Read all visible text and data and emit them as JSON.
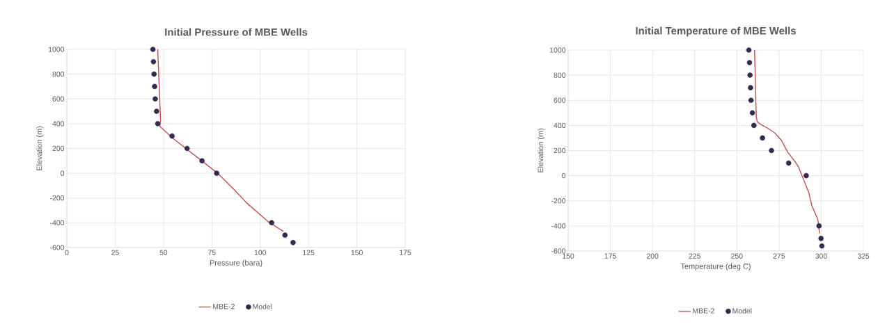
{
  "chart_data": [
    {
      "type": "line",
      "title": "Initial Pressure of MBE Wells",
      "xlabel": "Pressure (bara)",
      "ylabel": "Elevation (m)",
      "xlim": [
        0,
        175
      ],
      "ylim": [
        -600,
        1000
      ],
      "xticks": [
        0,
        25,
        50,
        75,
        100,
        125,
        150,
        175
      ],
      "yticks": [
        -600,
        -400,
        -200,
        0,
        200,
        400,
        600,
        800,
        1000
      ],
      "grid": true,
      "legend": "bottom",
      "series": [
        {
          "name": "MBE-2",
          "color": "#c0504d",
          "line_style": "solid",
          "marker": "none",
          "x": [
            47,
            48.5,
            48,
            55,
            78,
            87,
            93,
            104,
            112
          ],
          "values": [
            1000,
            420,
            380,
            280,
            0,
            -140,
            -240,
            -390,
            -470
          ]
        },
        {
          "name": "Model",
          "type": "scatter",
          "color": "#35294f",
          "marker": "circle",
          "x": [
            44.5,
            44.8,
            45.1,
            45.4,
            45.7,
            46.4,
            47,
            54.4,
            62.2,
            69.9,
            77.5,
            105.9,
            112.8,
            117
          ],
          "values": [
            1000,
            900,
            800,
            700,
            600,
            500,
            400,
            300,
            200,
            100,
            0,
            -400,
            -500,
            -560
          ]
        }
      ]
    },
    {
      "type": "line",
      "title": "Initial Temperature of MBE Wells",
      "xlabel": "Temperature (deg C)",
      "ylabel": "Elevation (m)",
      "xlim": [
        150,
        325
      ],
      "ylim": [
        -600,
        1000
      ],
      "xticks": [
        150,
        175,
        200,
        225,
        250,
        275,
        300,
        325
      ],
      "yticks": [
        -600,
        -400,
        -200,
        0,
        200,
        400,
        600,
        800,
        1000
      ],
      "grid": true,
      "legend": "bottom",
      "series": [
        {
          "name": "MBE-2",
          "color": "#c0504d",
          "line_style": "solid",
          "marker": "none",
          "x": [
            260.5,
            261.5,
            262,
            264,
            268,
            272.5,
            276.5,
            280,
            284,
            286.5,
            289.5,
            292.5,
            294.5,
            298,
            299
          ],
          "values": [
            1000,
            470,
            430,
            410,
            380,
            340,
            280,
            190,
            120,
            70,
            -30,
            -130,
            -240,
            -350,
            -460
          ]
        },
        {
          "name": "Model",
          "type": "scatter",
          "color": "#35294f",
          "marker": "circle",
          "x": [
            257.1,
            257.5,
            257.8,
            258.1,
            258.4,
            259.2,
            260.1,
            265.2,
            270.5,
            280.7,
            291.1,
            298.7,
            299.9,
            300.4
          ],
          "values": [
            1000,
            900,
            800,
            700,
            600,
            500,
            400,
            300,
            200,
            100,
            0,
            -400,
            -500,
            -560
          ]
        }
      ]
    }
  ]
}
